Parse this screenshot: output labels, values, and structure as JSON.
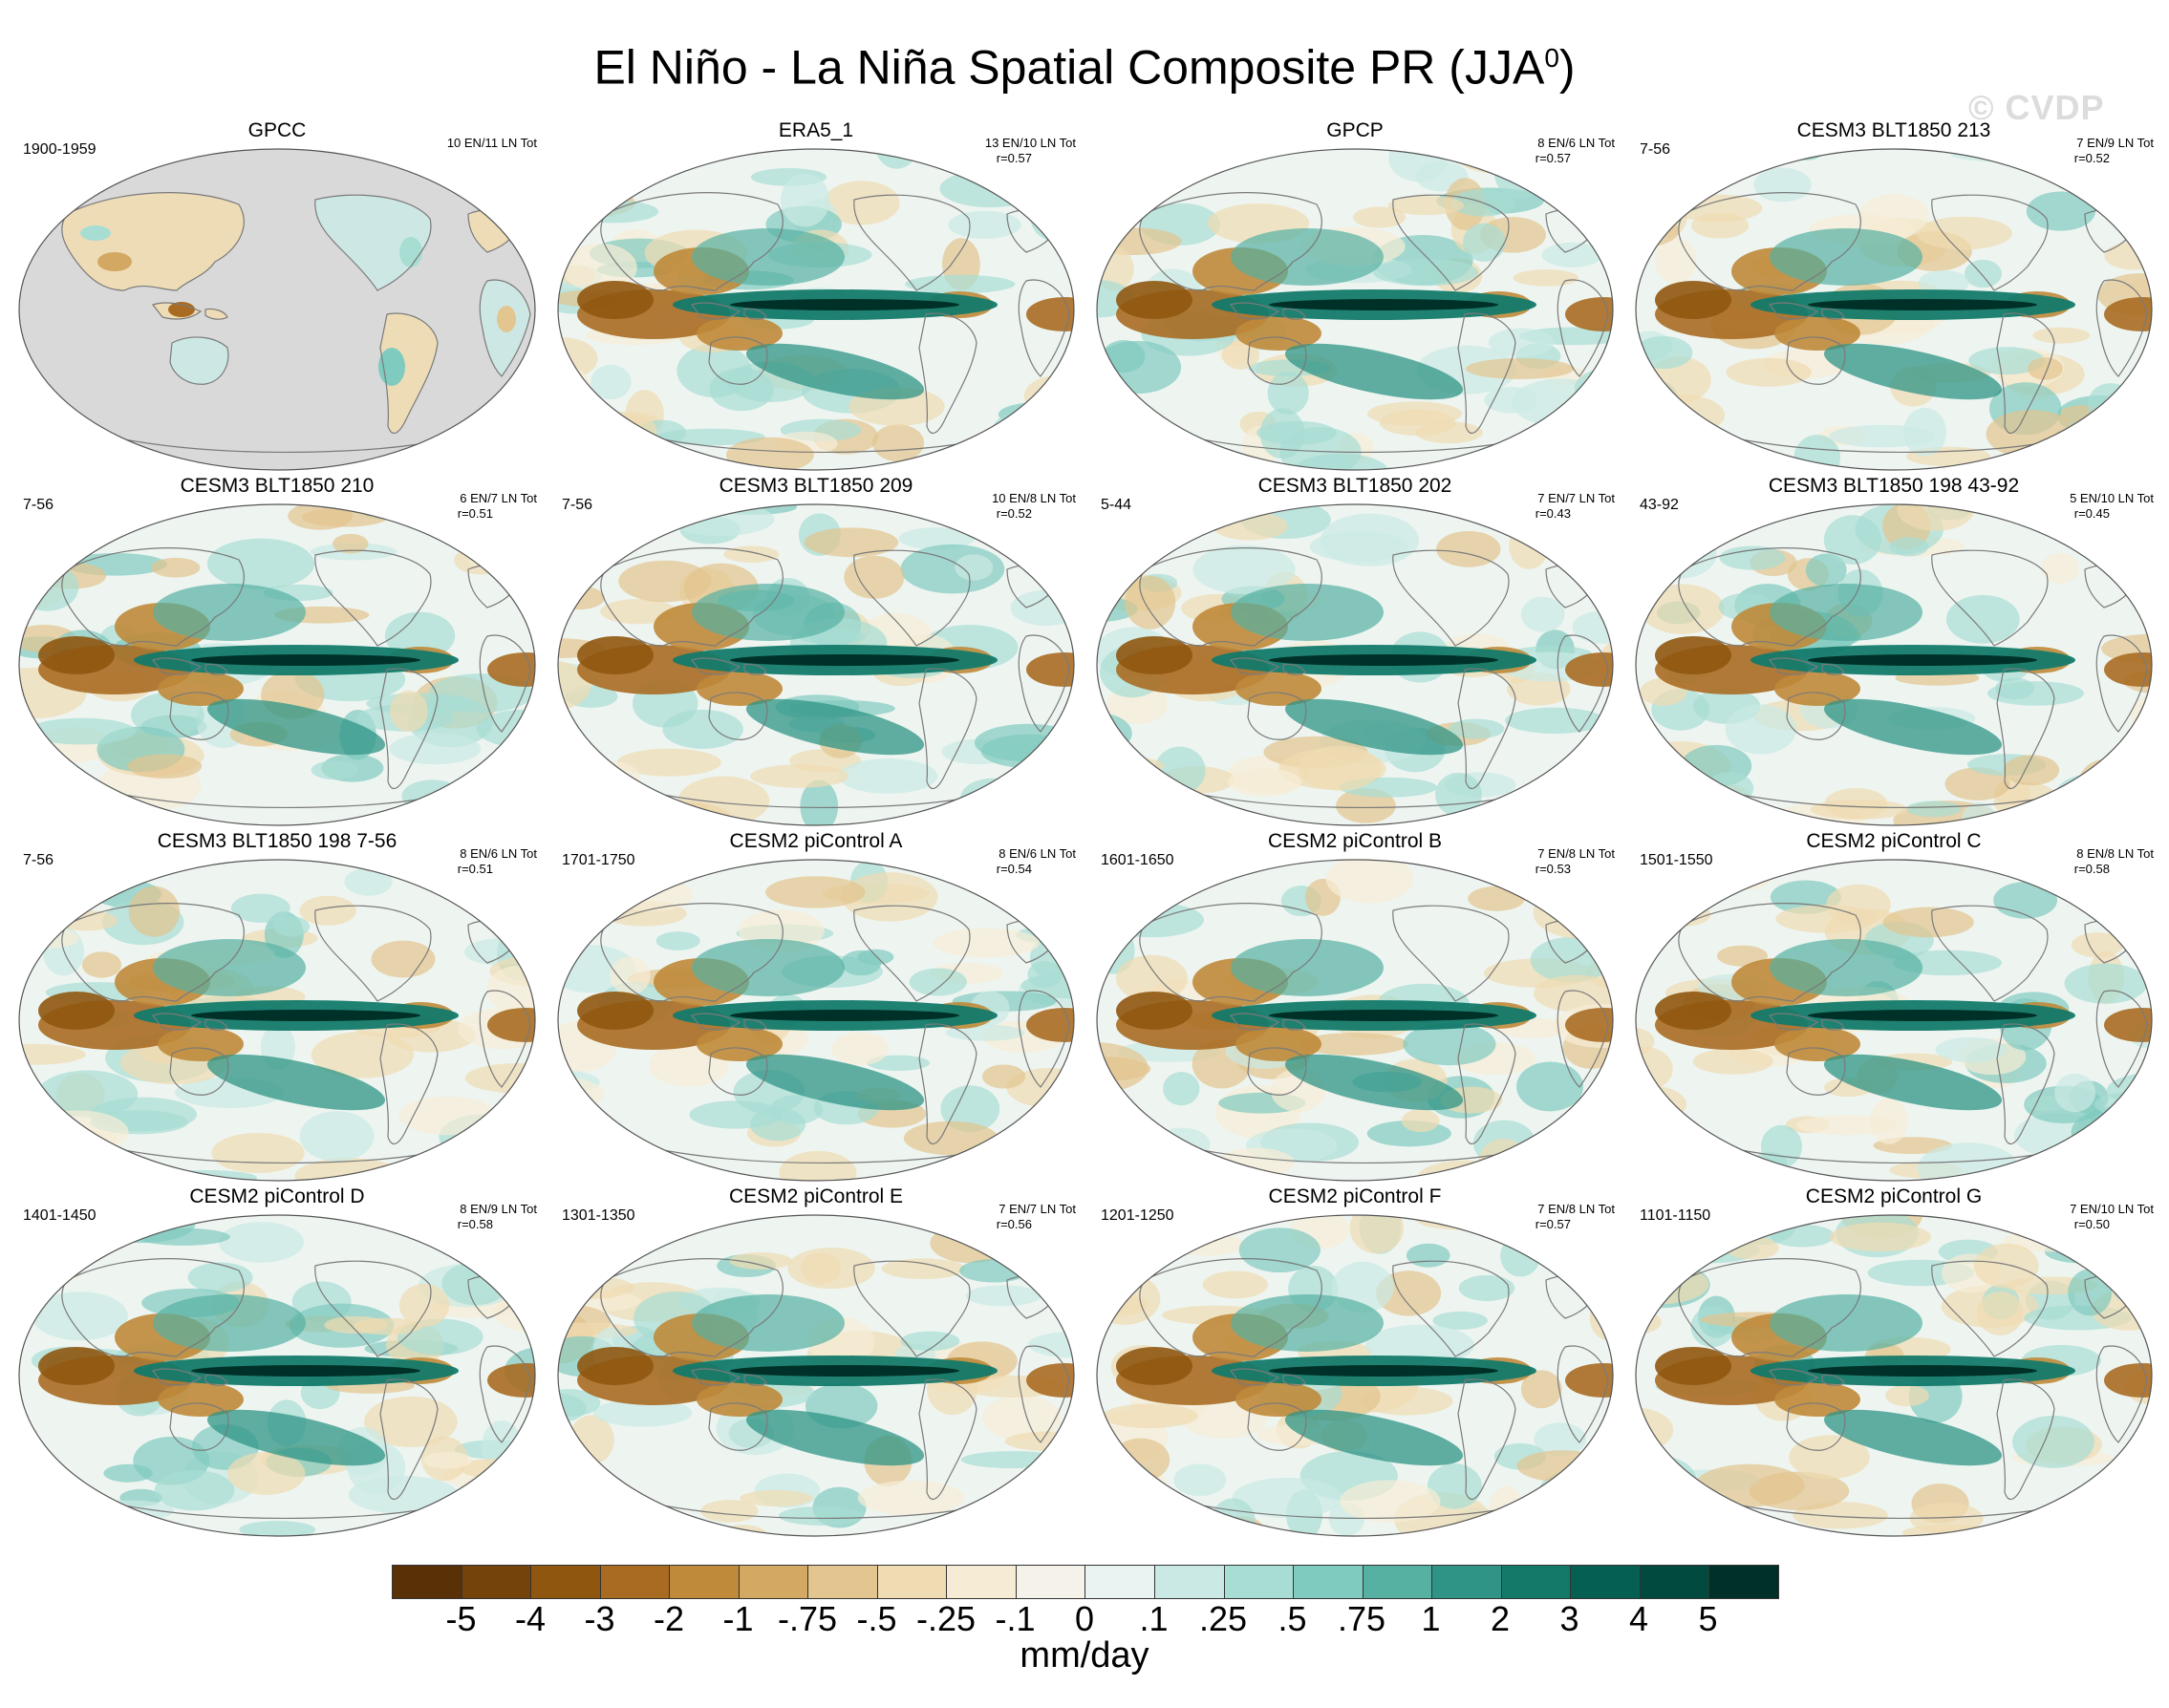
{
  "title": "El Niño - La Niña Spatial Composite PR (JJA",
  "title_superscript": "0",
  "title_close": ")",
  "watermark": "© CVDP",
  "panels": [
    {
      "title": "GPCC",
      "period": "1900-1959",
      "stats": "10 EN/11 LN Tot",
      "r": "",
      "style": "obs_land"
    },
    {
      "title": "ERA5_1",
      "period": "",
      "stats": "13 EN/10 LN Tot",
      "r": "r=0.57",
      "style": "reanalysis"
    },
    {
      "title": "GPCP",
      "period": "",
      "stats": "8 EN/6 LN Tot",
      "r": "r=0.57",
      "style": "reanalysis"
    },
    {
      "title": "CESM3 BLT1850 213",
      "period": "7-56",
      "stats": "7 EN/9 LN Tot",
      "r": "r=0.52",
      "style": "model"
    },
    {
      "title": "CESM3 BLT1850 210",
      "period": "7-56",
      "stats": "6 EN/7 LN Tot",
      "r": "r=0.51",
      "style": "model"
    },
    {
      "title": "CESM3 BLT1850 209",
      "period": "7-56",
      "stats": "10 EN/8 LN Tot",
      "r": "r=0.52",
      "style": "model"
    },
    {
      "title": "CESM3 BLT1850 202",
      "period": "5-44",
      "stats": "7 EN/7 LN Tot",
      "r": "r=0.43",
      "style": "model"
    },
    {
      "title": "CESM3 BLT1850 198 43-92",
      "period": "43-92",
      "stats": "5 EN/10 LN Tot",
      "r": "r=0.45",
      "style": "model"
    },
    {
      "title": "CESM3 BLT1850 198 7-56",
      "period": "7-56",
      "stats": "8 EN/6 LN Tot",
      "r": "r=0.51",
      "style": "model"
    },
    {
      "title": "CESM2 piControl A",
      "period": "1701-1750",
      "stats": "8 EN/6 LN Tot",
      "r": "r=0.54",
      "style": "model"
    },
    {
      "title": "CESM2 piControl B",
      "period": "1601-1650",
      "stats": "7 EN/8 LN Tot",
      "r": "r=0.53",
      "style": "model"
    },
    {
      "title": "CESM2 piControl C",
      "period": "1501-1550",
      "stats": "8 EN/8 LN Tot",
      "r": "r=0.58",
      "style": "model"
    },
    {
      "title": "CESM2 piControl D",
      "period": "1401-1450",
      "stats": "8 EN/9 LN Tot",
      "r": "r=0.58",
      "style": "model"
    },
    {
      "title": "CESM2 piControl E",
      "period": "1301-1350",
      "stats": "7 EN/7 LN Tot",
      "r": "r=0.56",
      "style": "model"
    },
    {
      "title": "CESM2 piControl F",
      "period": "1201-1250",
      "stats": "7 EN/8 LN Tot",
      "r": "r=0.57",
      "style": "model"
    },
    {
      "title": "CESM2 piControl G",
      "period": "1101-1150",
      "stats": "7 EN/10 LN Tot",
      "r": "r=0.50",
      "style": "model"
    }
  ],
  "colorbar": {
    "units": "mm/day",
    "labels": [
      "-5",
      "-4",
      "-3",
      "-2",
      "-1",
      "-.75",
      "-.5",
      "-.25",
      "-.1",
      "0",
      ".1",
      ".25",
      ".5",
      ".75",
      "1",
      "2",
      "3",
      "4",
      "5"
    ],
    "colors": [
      "#5a3106",
      "#74420b",
      "#8f5610",
      "#a96b22",
      "#bf8a3a",
      "#d2a862",
      "#e2c58f",
      "#efdcb2",
      "#f6ecd6",
      "#f5f2ea",
      "#e9f3f1",
      "#cbe9e4",
      "#a8ddd4",
      "#80cbbf",
      "#56b1a2",
      "#2f9485",
      "#137a6a",
      "#065f53",
      "#014a40",
      "#003128"
    ]
  },
  "colors": {
    "land_gray": "#d9d9d9",
    "coast": "#7a7a7a",
    "background": "#ffffff"
  }
}
